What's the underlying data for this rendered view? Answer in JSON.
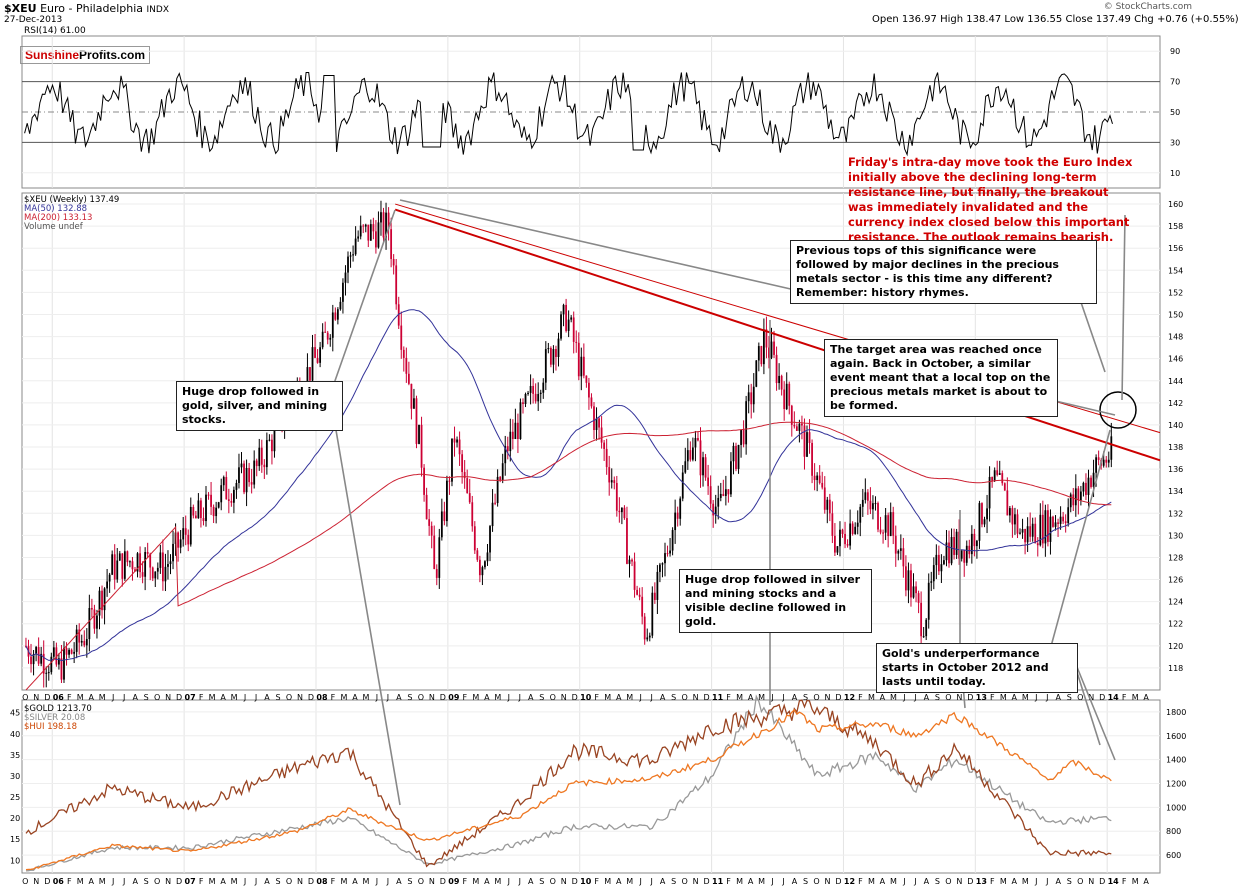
{
  "header": {
    "symbol": "$XEU",
    "name": "Euro - Philadelphia",
    "exchange": "INDX",
    "date": "27-Dec-2013",
    "credit": "© StockCharts.com",
    "open": "Open 136.97",
    "high": "High 138.47",
    "low": "Low 136.55",
    "close": "Close 137.49",
    "chg": "Chg +0.76 (+0.55%)"
  },
  "rsi_label": "RSI(14) 61.00",
  "logo": {
    "red": "Sunshine",
    "black": "Profits.com"
  },
  "legend_main": {
    "line1": "$XEU (Weekly) 137.49",
    "line2": "MA(50) 132.88",
    "line3": "MA(200) 133.13",
    "line4": "Volume undef"
  },
  "legend_bottom": {
    "line1": "$GOLD 1213.70",
    "line2": "$SILVER 20.08",
    "line3": "$HUI 198.18"
  },
  "annotations": {
    "red_note": "Friday's intra-day move took the Euro Index initially above the declining long-term resistance line, but finally, the breakout was immediately invalidated and the currency index closed below this important resistance. The outlook remains bearish.",
    "tops": "Previous tops of this significance were followed by major declines in the precious metals sector - is this time any different? Remember: history rhymes.",
    "target": "The target area was reached once again. Back in October, a similar event meant that a local top on the precious metals market is about to be formed.",
    "drop1": "Huge drop followed in gold, silver, and mining stocks.",
    "drop2": "Huge drop followed in silver and mining stocks and a visible decline followed in gold.",
    "gold_under": "Gold's underperformance starts in October 2012 and lasts until today."
  },
  "colors": {
    "price_up": "#000000",
    "price_down": "#cc0033",
    "ma50": "#333399",
    "ma200": "#cc2233",
    "resistance": "#cc0000",
    "gold": "#ee7722",
    "silver": "#999999",
    "hui": "#994422",
    "rsi": "#000000",
    "rsi_over": "#339933",
    "rsi_under": "#993333"
  },
  "chart_data": {
    "type": "line",
    "x_axis_labels": [
      "O",
      "N",
      "D",
      "06",
      "F",
      "M",
      "A",
      "M",
      "J",
      "J",
      "A",
      "S",
      "O",
      "N",
      "D",
      "07",
      "F",
      "M",
      "A",
      "M",
      "J",
      "J",
      "A",
      "S",
      "O",
      "N",
      "D",
      "08",
      "F",
      "M",
      "A",
      "M",
      "J",
      "J",
      "A",
      "S",
      "O",
      "N",
      "D",
      "09",
      "F",
      "M",
      "A",
      "M",
      "J",
      "J",
      "A",
      "S",
      "O",
      "N",
      "D",
      "10",
      "F",
      "M",
      "A",
      "M",
      "J",
      "J",
      "A",
      "S",
      "O",
      "N",
      "D",
      "11",
      "F",
      "M",
      "A",
      "M",
      "J",
      "J",
      "A",
      "S",
      "O",
      "N",
      "D",
      "12",
      "F",
      "M",
      "A",
      "M",
      "J",
      "J",
      "A",
      "S",
      "O",
      "N",
      "D",
      "13",
      "F",
      "M",
      "A",
      "M",
      "J",
      "J",
      "A",
      "S",
      "O",
      "N",
      "D",
      "14",
      "F",
      "M",
      "A"
    ],
    "rsi_axis": [
      90,
      70,
      50,
      30,
      10
    ],
    "price_axis": [
      160,
      158,
      156,
      154,
      152,
      150,
      148,
      146,
      144,
      142,
      140,
      138,
      136,
      134,
      132,
      130,
      128,
      126,
      124,
      122,
      120,
      118
    ],
    "price_ylim": [
      116,
      161
    ],
    "bottom_left_axis": [
      45,
      40,
      35,
      30,
      25,
      20,
      15,
      10
    ],
    "bottom_right_axis": [
      1800,
      1600,
      1400,
      1200,
      1000,
      800,
      600
    ],
    "xeu_weekly": [
      {
        "t": 2005.75,
        "v": 120
      },
      {
        "t": 2006.0,
        "v": 118
      },
      {
        "t": 2006.2,
        "v": 121
      },
      {
        "t": 2006.4,
        "v": 127
      },
      {
        "t": 2006.6,
        "v": 128
      },
      {
        "t": 2006.8,
        "v": 127
      },
      {
        "t": 2007.0,
        "v": 131
      },
      {
        "t": 2007.25,
        "v": 134
      },
      {
        "t": 2007.5,
        "v": 136
      },
      {
        "t": 2007.75,
        "v": 142
      },
      {
        "t": 2008.0,
        "v": 147
      },
      {
        "t": 2008.25,
        "v": 157
      },
      {
        "t": 2008.5,
        "v": 158
      },
      {
        "t": 2008.6,
        "v": 148
      },
      {
        "t": 2008.75,
        "v": 137
      },
      {
        "t": 2008.85,
        "v": 126
      },
      {
        "t": 2009.0,
        "v": 139
      },
      {
        "t": 2009.2,
        "v": 127
      },
      {
        "t": 2009.4,
        "v": 138
      },
      {
        "t": 2009.6,
        "v": 143
      },
      {
        "t": 2009.85,
        "v": 150
      },
      {
        "t": 2010.0,
        "v": 143
      },
      {
        "t": 2010.2,
        "v": 135
      },
      {
        "t": 2010.45,
        "v": 121
      },
      {
        "t": 2010.6,
        "v": 128
      },
      {
        "t": 2010.8,
        "v": 139
      },
      {
        "t": 2011.0,
        "v": 132
      },
      {
        "t": 2011.2,
        "v": 140
      },
      {
        "t": 2011.35,
        "v": 148
      },
      {
        "t": 2011.5,
        "v": 143
      },
      {
        "t": 2011.7,
        "v": 137
      },
      {
        "t": 2011.9,
        "v": 129
      },
      {
        "t": 2012.1,
        "v": 133
      },
      {
        "t": 2012.3,
        "v": 131
      },
      {
        "t": 2012.55,
        "v": 122
      },
      {
        "t": 2012.7,
        "v": 129
      },
      {
        "t": 2012.9,
        "v": 129
      },
      {
        "t": 2013.1,
        "v": 135
      },
      {
        "t": 2013.3,
        "v": 130
      },
      {
        "t": 2013.5,
        "v": 131
      },
      {
        "t": 2013.7,
        "v": 133
      },
      {
        "t": 2013.85,
        "v": 136
      },
      {
        "t": 2013.99,
        "v": 137.49
      }
    ],
    "gold": [
      {
        "t": 2005.75,
        "v": 470
      },
      {
        "t": 2006.4,
        "v": 680
      },
      {
        "t": 2007.0,
        "v": 630
      },
      {
        "t": 2007.8,
        "v": 800
      },
      {
        "t": 2008.2,
        "v": 980
      },
      {
        "t": 2008.8,
        "v": 720
      },
      {
        "t": 2009.5,
        "v": 930
      },
      {
        "t": 2009.9,
        "v": 1200
      },
      {
        "t": 2010.5,
        "v": 1240
      },
      {
        "t": 2010.95,
        "v": 1400
      },
      {
        "t": 2011.6,
        "v": 1800
      },
      {
        "t": 2011.75,
        "v": 1650
      },
      {
        "t": 2012.2,
        "v": 1700
      },
      {
        "t": 2012.5,
        "v": 1600
      },
      {
        "t": 2012.8,
        "v": 1780
      },
      {
        "t": 2013.3,
        "v": 1400
      },
      {
        "t": 2013.5,
        "v": 1230
      },
      {
        "t": 2013.7,
        "v": 1380
      },
      {
        "t": 2013.99,
        "v": 1213.7
      }
    ],
    "silver": [
      {
        "t": 2005.75,
        "v": 7.5
      },
      {
        "t": 2006.4,
        "v": 13
      },
      {
        "t": 2007.0,
        "v": 13
      },
      {
        "t": 2008.2,
        "v": 20
      },
      {
        "t": 2008.8,
        "v": 9
      },
      {
        "t": 2009.5,
        "v": 14
      },
      {
        "t": 2009.9,
        "v": 18
      },
      {
        "t": 2010.5,
        "v": 18
      },
      {
        "t": 2010.95,
        "v": 30
      },
      {
        "t": 2011.3,
        "v": 48
      },
      {
        "t": 2011.75,
        "v": 30
      },
      {
        "t": 2012.2,
        "v": 35
      },
      {
        "t": 2012.5,
        "v": 27
      },
      {
        "t": 2012.8,
        "v": 34
      },
      {
        "t": 2013.3,
        "v": 23
      },
      {
        "t": 2013.5,
        "v": 19
      },
      {
        "t": 2013.99,
        "v": 20.08
      }
    ],
    "hui": [
      {
        "t": 2005.75,
        "v": 260
      },
      {
        "t": 2006.4,
        "v": 390
      },
      {
        "t": 2007.0,
        "v": 330
      },
      {
        "t": 2007.8,
        "v": 450
      },
      {
        "t": 2008.2,
        "v": 500
      },
      {
        "t": 2008.8,
        "v": 160
      },
      {
        "t": 2009.5,
        "v": 350
      },
      {
        "t": 2009.9,
        "v": 500
      },
      {
        "t": 2010.5,
        "v": 470
      },
      {
        "t": 2010.95,
        "v": 570
      },
      {
        "t": 2011.7,
        "v": 630
      },
      {
        "t": 2012.2,
        "v": 520
      },
      {
        "t": 2012.5,
        "v": 400
      },
      {
        "t": 2012.8,
        "v": 510
      },
      {
        "t": 2013.3,
        "v": 290
      },
      {
        "t": 2013.5,
        "v": 200
      },
      {
        "t": 2013.99,
        "v": 198.18
      }
    ]
  }
}
